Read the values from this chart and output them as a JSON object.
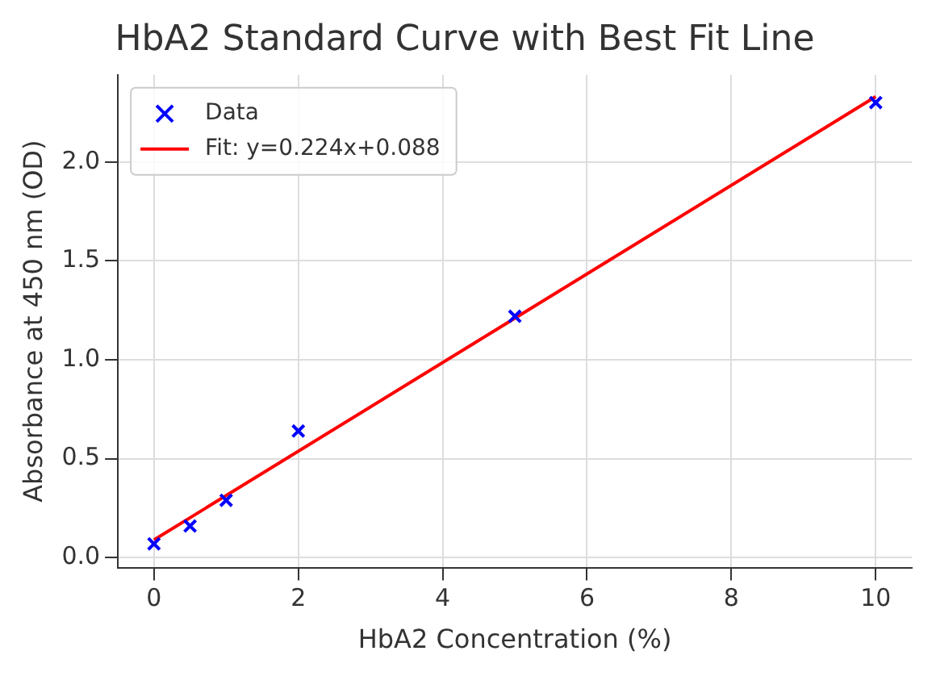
{
  "chart_data": {
    "type": "scatter",
    "title": "HbA2 Standard Curve with Best Fit Line",
    "xlabel": "HbA2 Concentration (%)",
    "ylabel": "Absorbance at 450 nm (OD)",
    "xlim": [
      -0.5,
      10.5
    ],
    "xticks": [
      0,
      2,
      4,
      6,
      8,
      10
    ],
    "ylim": [
      -0.05,
      2.44
    ],
    "yticks": [
      {
        "value": 0,
        "label": "0.0"
      },
      0.5,
      {
        "value": 1,
        "label": "1.0"
      },
      1.5,
      {
        "value": 2,
        "label": "2.0"
      }
    ],
    "grid": true,
    "legend": "top left",
    "series": [
      {
        "name": "Data",
        "color": "#0000ff",
        "marker": "cross",
        "x": [
          0,
          0.5,
          1,
          2,
          5,
          10
        ],
        "values": [
          0.07,
          0.16,
          0.29,
          0.64,
          1.22,
          2.3
        ]
      },
      {
        "name": "Fit: y=0.224x+0.088",
        "type": "line",
        "marker": "none",
        "color": "#ff0000",
        "x": [
          0,
          10
        ],
        "values": [
          0.09,
          2.33
        ]
      }
    ]
  }
}
